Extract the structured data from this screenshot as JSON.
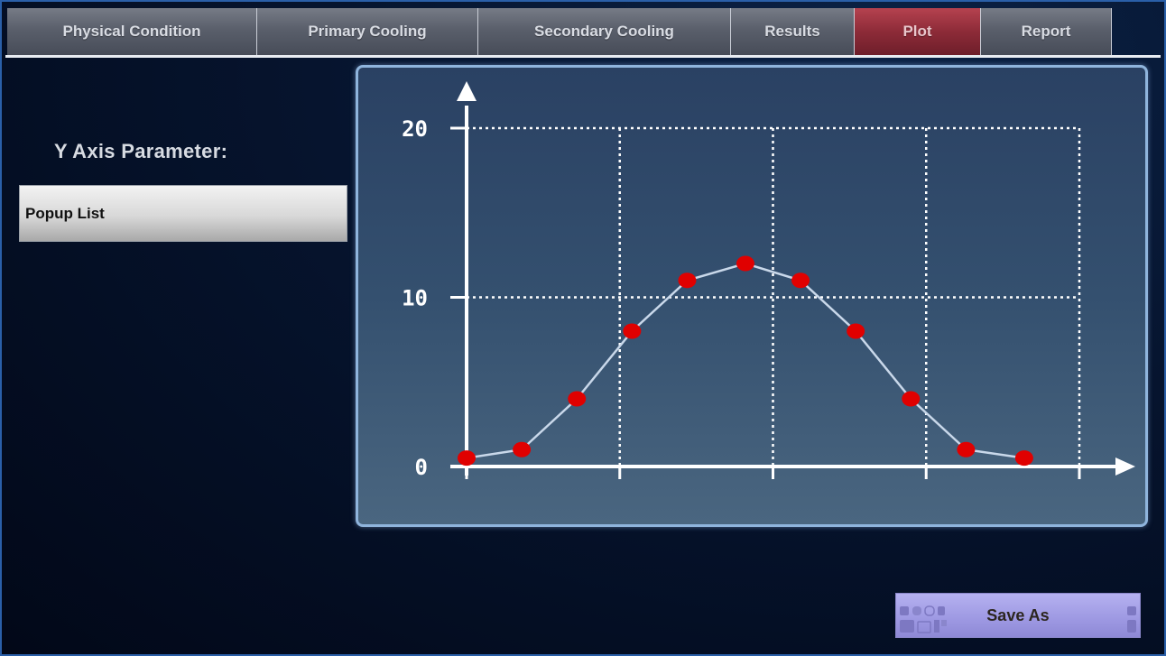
{
  "tabs": [
    {
      "label": "Physical Condition",
      "active": false
    },
    {
      "label": "Primary Cooling",
      "active": false
    },
    {
      "label": "Secondary Cooling",
      "active": false
    },
    {
      "label": "Results",
      "active": false
    },
    {
      "label": "Plot",
      "active": true
    },
    {
      "label": "Report",
      "active": false
    }
  ],
  "left_panel": {
    "y_axis_label": "Y Axis Parameter:",
    "popup_value": "Popup List"
  },
  "save_button": {
    "label": "Save As"
  },
  "colors": {
    "active_tab": "#8d2b38",
    "point": "#e00000",
    "line": "#c9d8ea",
    "grid": "#ffffff",
    "save_button": "#9d98e2"
  },
  "chart_data": {
    "type": "line",
    "title": "",
    "xlabel": "",
    "ylabel": "",
    "ylim": [
      0,
      20
    ],
    "xlim": [
      0,
      20
    ],
    "x_ticks": [
      0,
      5,
      10,
      15,
      20
    ],
    "x_tick_labels": [
      "",
      "",
      "",
      "",
      ""
    ],
    "y_ticks": [
      0,
      10,
      20
    ],
    "y_tick_labels": [
      "0",
      "10",
      "20"
    ],
    "grid": true,
    "legend": "none",
    "x": [
      0,
      1.8,
      3.6,
      5.4,
      7.2,
      9.1,
      10.9,
      12.7,
      14.5,
      16.3,
      18.2
    ],
    "values": [
      0.5,
      1,
      4,
      8,
      11,
      12,
      11,
      8,
      4,
      1,
      0.5
    ]
  }
}
